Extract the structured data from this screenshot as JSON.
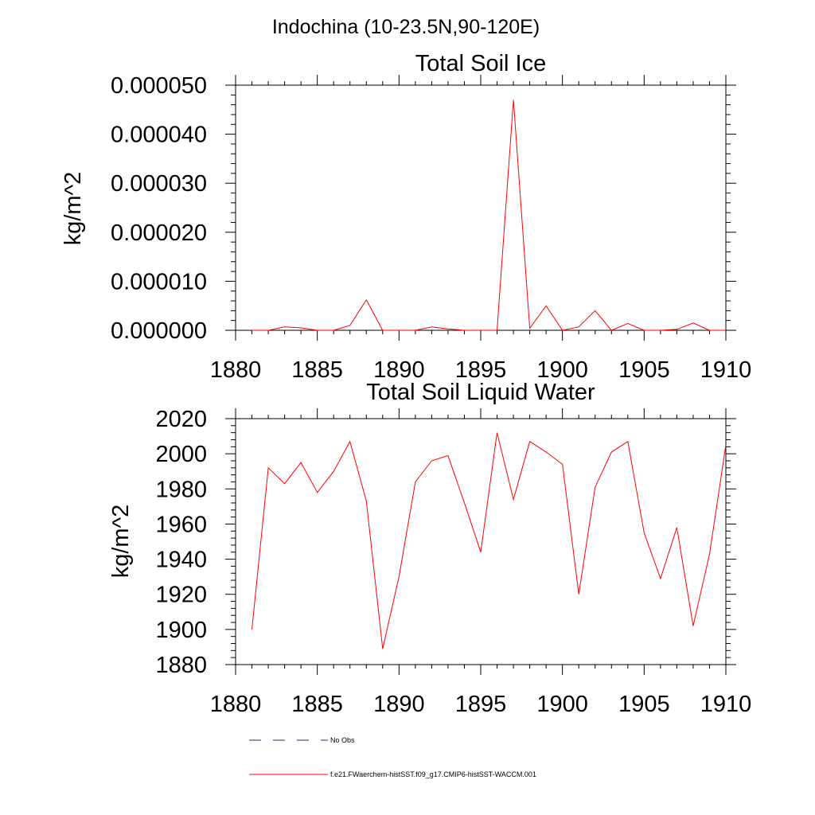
{
  "figure": {
    "main_title": "Indochina (10-23.5N,90-120E)"
  },
  "chart_data": [
    {
      "type": "line",
      "title": "Total Soil Ice",
      "xlabel": "",
      "ylabel": "kg/m^2",
      "xlim": [
        1880,
        1910
      ],
      "ylim": [
        0,
        5e-05
      ],
      "x_ticks": [
        1880,
        1885,
        1890,
        1895,
        1900,
        1905,
        1910
      ],
      "x_tick_labels": [
        "1880",
        "1885",
        "1890",
        "1895",
        "1900",
        "1905",
        "1910"
      ],
      "y_ticks": [
        0,
        1e-05,
        2e-05,
        3e-05,
        4e-05,
        5e-05
      ],
      "y_tick_labels": [
        "0.000000",
        "0.000010",
        "0.000020",
        "0.000030",
        "0.000040",
        "0.000050"
      ],
      "series": [
        {
          "name": "f.e21.FWaerchem-histSST.f09_g17.CMIP6-histSST-WACCM.001",
          "color": "#ff0000",
          "x": [
            1881,
            1882,
            1883,
            1884,
            1885,
            1886,
            1887,
            1888,
            1889,
            1890,
            1891,
            1892,
            1893,
            1894,
            1895,
            1896,
            1897,
            1898,
            1899,
            1900,
            1901,
            1902,
            1903,
            1904,
            1905,
            1906,
            1907,
            1908,
            1909,
            1910
          ],
          "y": [
            0.0,
            0.0,
            7e-07,
            5e-07,
            0.0,
            0.0,
            1e-06,
            6.2e-06,
            0.0,
            0.0,
            0.0,
            7e-07,
            3e-07,
            0.0,
            0.0,
            0.0,
            4.7e-05,
            4e-07,
            5e-06,
            0.0,
            7e-07,
            4e-06,
            0.0,
            1.4e-06,
            0.0,
            0.0,
            2e-07,
            1.5e-06,
            0.0,
            0.0
          ]
        }
      ],
      "grid": false
    },
    {
      "type": "line",
      "title": "Total Soil Liquid Water",
      "xlabel": "",
      "ylabel": "kg/m^2",
      "xlim": [
        1880,
        1910
      ],
      "ylim": [
        1880,
        2020
      ],
      "x_ticks": [
        1880,
        1885,
        1890,
        1895,
        1900,
        1905,
        1910
      ],
      "x_tick_labels": [
        "1880",
        "1885",
        "1890",
        "1895",
        "1900",
        "1905",
        "1910"
      ],
      "y_ticks": [
        1880,
        1900,
        1920,
        1940,
        1960,
        1980,
        2000,
        2020
      ],
      "y_tick_labels": [
        "1880",
        "1900",
        "1920",
        "1940",
        "1960",
        "1980",
        "2000",
        "2020"
      ],
      "series": [
        {
          "name": "f.e21.FWaerchem-histSST.f09_g17.CMIP6-histSST-WACCM.001",
          "color": "#ff0000",
          "x": [
            1881,
            1882,
            1883,
            1884,
            1885,
            1886,
            1887,
            1888,
            1889,
            1890,
            1891,
            1892,
            1893,
            1894,
            1895,
            1896,
            1897,
            1898,
            1899,
            1900,
            1901,
            1902,
            1903,
            1904,
            1905,
            1906,
            1907,
            1908,
            1909,
            1910
          ],
          "y": [
            1900,
            1992,
            1983,
            1995,
            1978,
            1990,
            2007,
            1973,
            1889,
            1930,
            1984,
            1996,
            1999,
            1972,
            1944,
            2012,
            1974,
            2007,
            2001,
            1994,
            1920,
            1981,
            2001,
            2007,
            1955,
            1929,
            1958,
            1902,
            1943,
            2005
          ]
        }
      ],
      "grid": false
    }
  ],
  "legend": [
    {
      "label": "No Obs",
      "style": "dashed",
      "color": "#2a2a6e"
    },
    {
      "label": "f.e21.FWaerchem-histSST.f09_g17.CMIP6-histSST-WACCM.001",
      "style": "solid",
      "color": "#ff0000"
    }
  ]
}
